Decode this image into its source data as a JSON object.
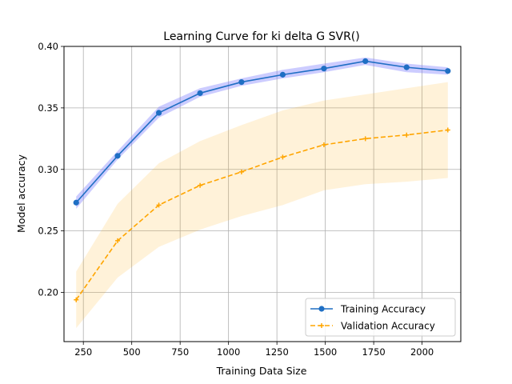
{
  "chart_data": {
    "type": "line",
    "title": "Learning Curve for ki delta G SVR()",
    "xlabel": "Training Data Size",
    "ylabel": "Model accuracy",
    "xlim": [
      150,
      2200
    ],
    "ylim": [
      0.16,
      0.4
    ],
    "grid": true,
    "legend_position": "bottom-right",
    "x_ticks": [
      250,
      500,
      750,
      1000,
      1250,
      1500,
      1750,
      2000
    ],
    "y_ticks": [
      0.2,
      0.25,
      0.3,
      0.35,
      0.4
    ],
    "x_tick_labels": [
      "250",
      "500",
      "750",
      "1000",
      "1250",
      "1500",
      "1750",
      "2000"
    ],
    "y_tick_labels": [
      "0.20",
      "0.25",
      "0.30",
      "0.35",
      "0.40"
    ],
    "x": [
      213,
      427,
      640,
      853,
      1067,
      1280,
      1493,
      1707,
      1920,
      2133
    ],
    "series": [
      {
        "name": "Training Accuracy",
        "color": "#1f6fc4",
        "band_color": "#8080ff",
        "marker": "circle",
        "line_style": "solid",
        "values": [
          0.273,
          0.311,
          0.346,
          0.362,
          0.371,
          0.377,
          0.382,
          0.388,
          0.383,
          0.38
        ],
        "lower": [
          0.268,
          0.308,
          0.342,
          0.359,
          0.368,
          0.374,
          0.379,
          0.385,
          0.379,
          0.377
        ],
        "upper": [
          0.278,
          0.315,
          0.351,
          0.366,
          0.374,
          0.381,
          0.386,
          0.391,
          0.386,
          0.383
        ]
      },
      {
        "name": "Validation Accuracy",
        "color": "#ffa500",
        "band_color": "#ffa500",
        "marker": "plus",
        "line_style": "dashed",
        "values": [
          0.194,
          0.242,
          0.271,
          0.287,
          0.298,
          0.31,
          0.32,
          0.325,
          0.328,
          0.332
        ],
        "lower": [
          0.171,
          0.212,
          0.237,
          0.251,
          0.262,
          0.271,
          0.283,
          0.288,
          0.29,
          0.293
        ],
        "upper": [
          0.217,
          0.272,
          0.305,
          0.323,
          0.336,
          0.348,
          0.356,
          0.361,
          0.366,
          0.371
        ]
      }
    ]
  }
}
